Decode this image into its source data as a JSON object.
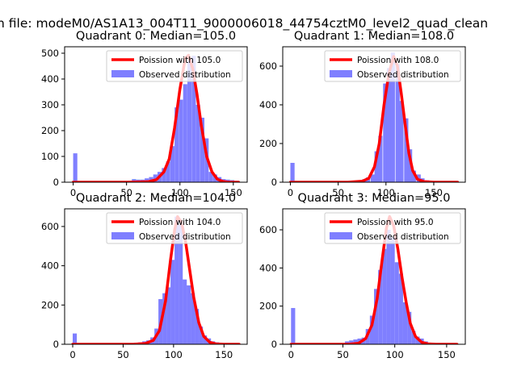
{
  "figure": {
    "suptitle": "n file: modeM0/AS1A13_004T11_9000006018_44754cztM0_level2_quad_clean"
  },
  "colors": {
    "hist": "#7f7fff",
    "poisson_line": "#ff0000",
    "axes_edge": "#000000",
    "background": "#ffffff"
  },
  "chart_data": [
    {
      "type": "bar",
      "title": "Quadrant 0: Median=105.0",
      "xlabel": "",
      "ylabel": "",
      "xlim": [
        -8,
        163
      ],
      "ylim": [
        0,
        525
      ],
      "xticks": [
        0,
        50,
        100,
        150
      ],
      "yticks": [
        0,
        100,
        200,
        300,
        400,
        500
      ],
      "grid": false,
      "legend_position": "upper-right",
      "series": [
        {
          "name": "Poission with 105.0",
          "kind": "line",
          "mean": 105.0,
          "points": [
            [
              0,
              0
            ],
            [
              50,
              0
            ],
            [
              70,
              2
            ],
            [
              78,
              10
            ],
            [
              85,
              40
            ],
            [
              90,
              90
            ],
            [
              95,
              210
            ],
            [
              100,
              360
            ],
            [
              105,
              480
            ],
            [
              108,
              492
            ],
            [
              112,
              440
            ],
            [
              116,
              340
            ],
            [
              120,
              220
            ],
            [
              125,
              100
            ],
            [
              130,
              40
            ],
            [
              135,
              12
            ],
            [
              140,
              3
            ],
            [
              145,
              0
            ],
            [
              155,
              0
            ]
          ]
        },
        {
          "name": "Observed distribution",
          "kind": "histogram",
          "bin_width": 3.9,
          "bins": [
            [
              0,
              112
            ],
            [
              4,
              2
            ],
            [
              8,
              1
            ],
            [
              12,
              1
            ],
            [
              16,
              1
            ],
            [
              20,
              1
            ],
            [
              24,
              1
            ],
            [
              28,
              1
            ],
            [
              32,
              1
            ],
            [
              36,
              1
            ],
            [
              40,
              1
            ],
            [
              44,
              1
            ],
            [
              48,
              1
            ],
            [
              55,
              12
            ],
            [
              59,
              10
            ],
            [
              63,
              10
            ],
            [
              67,
              15
            ],
            [
              71,
              20
            ],
            [
              75,
              30
            ],
            [
              79,
              40
            ],
            [
              83,
              55
            ],
            [
              87,
              80
            ],
            [
              91,
              140
            ],
            [
              95,
              290
            ],
            [
              99,
              320
            ],
            [
              103,
              380
            ],
            [
              107,
              470
            ],
            [
              111,
              490
            ],
            [
              115,
              300
            ],
            [
              119,
              250
            ],
            [
              123,
              170
            ],
            [
              127,
              40
            ],
            [
              131,
              30
            ],
            [
              135,
              20
            ],
            [
              139,
              12
            ],
            [
              143,
              10
            ],
            [
              147,
              8
            ],
            [
              151,
              5
            ]
          ]
        }
      ]
    },
    {
      "type": "bar",
      "title": "Quadrant 1: Median=108.0",
      "xlabel": "",
      "ylabel": "",
      "xlim": [
        -8,
        183
      ],
      "ylim": [
        0,
        700
      ],
      "xticks": [
        0,
        50,
        100,
        150
      ],
      "yticks": [
        0,
        200,
        400,
        600
      ],
      "grid": false,
      "legend_position": "upper-right",
      "series": [
        {
          "name": "Poission with 108.0",
          "kind": "line",
          "mean": 108.0,
          "points": [
            [
              0,
              0
            ],
            [
              60,
              0
            ],
            [
              75,
              5
            ],
            [
              82,
              20
            ],
            [
              88,
              80
            ],
            [
              93,
              200
            ],
            [
              98,
              400
            ],
            [
              103,
              560
            ],
            [
              108,
              650
            ],
            [
              112,
              600
            ],
            [
              116,
              460
            ],
            [
              120,
              300
            ],
            [
              124,
              150
            ],
            [
              128,
              60
            ],
            [
              133,
              15
            ],
            [
              140,
              3
            ],
            [
              150,
              0
            ],
            [
              175,
              0
            ]
          ]
        },
        {
          "name": "Observed distribution",
          "kind": "histogram",
          "bin_width": 4.4,
          "bins": [
            [
              0,
              100
            ],
            [
              4.4,
              2
            ],
            [
              9,
              1
            ],
            [
              13,
              1
            ],
            [
              18,
              1
            ],
            [
              22,
              1
            ],
            [
              26,
              1
            ],
            [
              31,
              1
            ],
            [
              35,
              1
            ],
            [
              40,
              1
            ],
            [
              44,
              1
            ],
            [
              49,
              1
            ],
            [
              53,
              2
            ],
            [
              57,
              3
            ],
            [
              62,
              5
            ],
            [
              66,
              7
            ],
            [
              70,
              10
            ],
            [
              75,
              15
            ],
            [
              79,
              25
            ],
            [
              84,
              40
            ],
            [
              88,
              160
            ],
            [
              92,
              240
            ],
            [
              97,
              510
            ],
            [
              101,
              590
            ],
            [
              105,
              670
            ],
            [
              110,
              610
            ],
            [
              114,
              420
            ],
            [
              119,
              330
            ],
            [
              123,
              170
            ],
            [
              127,
              60
            ],
            [
              132,
              40
            ],
            [
              136,
              20
            ],
            [
              141,
              10
            ],
            [
              145,
              5
            ],
            [
              150,
              3
            ],
            [
              154,
              2
            ],
            [
              158,
              1
            ],
            [
              163,
              1
            ],
            [
              167,
              1
            ],
            [
              172,
              1
            ]
          ]
        }
      ]
    },
    {
      "type": "bar",
      "title": "Quadrant 2: Median=104.0",
      "xlabel": "",
      "ylabel": "",
      "xlim": [
        -8,
        173
      ],
      "ylim": [
        0,
        690
      ],
      "xticks": [
        0,
        50,
        100,
        150
      ],
      "yticks": [
        0,
        200,
        400,
        600
      ],
      "grid": false,
      "legend_position": "upper-right",
      "series": [
        {
          "name": "Poission with 104.0",
          "kind": "line",
          "mean": 104.0,
          "points": [
            [
              0,
              0
            ],
            [
              60,
              0
            ],
            [
              72,
              4
            ],
            [
              80,
              20
            ],
            [
              86,
              70
            ],
            [
              92,
              220
            ],
            [
              97,
              430
            ],
            [
              101,
              580
            ],
            [
              104,
              650
            ],
            [
              108,
              620
            ],
            [
              112,
              520
            ],
            [
              116,
              380
            ],
            [
              120,
              240
            ],
            [
              125,
              110
            ],
            [
              130,
              40
            ],
            [
              136,
              10
            ],
            [
              142,
              2
            ],
            [
              150,
              0
            ],
            [
              165,
              0
            ]
          ]
        },
        {
          "name": "Observed distribution",
          "kind": "histogram",
          "bin_width": 4.1,
          "bins": [
            [
              0,
              55
            ],
            [
              4,
              2
            ],
            [
              8,
              1
            ],
            [
              12,
              1
            ],
            [
              16,
              1
            ],
            [
              20,
              1
            ],
            [
              24,
              1
            ],
            [
              28,
              1
            ],
            [
              32,
              1
            ],
            [
              36,
              1
            ],
            [
              40,
              1
            ],
            [
              44,
              1
            ],
            [
              48,
              1
            ],
            [
              53,
              1
            ],
            [
              57,
              5
            ],
            [
              61,
              8
            ],
            [
              65,
              10
            ],
            [
              69,
              15
            ],
            [
              73,
              20
            ],
            [
              77,
              35
            ],
            [
              81,
              80
            ],
            [
              85,
              230
            ],
            [
              89,
              260
            ],
            [
              93,
              290
            ],
            [
              97,
              430
            ],
            [
              101,
              650
            ],
            [
              105,
              610
            ],
            [
              109,
              330
            ],
            [
              113,
              300
            ],
            [
              117,
              260
            ],
            [
              121,
              180
            ],
            [
              125,
              90
            ],
            [
              129,
              45
            ],
            [
              133,
              30
            ],
            [
              137,
              15
            ],
            [
              141,
              10
            ],
            [
              145,
              5
            ],
            [
              150,
              3
            ],
            [
              154,
              2
            ],
            [
              158,
              1
            ],
            [
              162,
              1
            ]
          ]
        }
      ]
    },
    {
      "type": "bar",
      "title": "Quadrant 3: Median=95.0",
      "xlabel": "",
      "ylabel": "",
      "xlim": [
        -8,
        168
      ],
      "ylim": [
        0,
        710
      ],
      "xticks": [
        0,
        50,
        100,
        150
      ],
      "yticks": [
        0,
        200,
        400,
        600
      ],
      "grid": false,
      "legend_position": "upper-right",
      "series": [
        {
          "name": "Poission with 95.0",
          "kind": "line",
          "mean": 95.0,
          "points": [
            [
              0,
              0
            ],
            [
              55,
              0
            ],
            [
              65,
              5
            ],
            [
              72,
              30
            ],
            [
              78,
              100
            ],
            [
              83,
              240
            ],
            [
              88,
              450
            ],
            [
              92,
              610
            ],
            [
              95,
              670
            ],
            [
              99,
              620
            ],
            [
              103,
              500
            ],
            [
              107,
              350
            ],
            [
              111,
              220
            ],
            [
              115,
              110
            ],
            [
              120,
              40
            ],
            [
              126,
              10
            ],
            [
              132,
              2
            ],
            [
              140,
              0
            ],
            [
              160,
              0
            ]
          ]
        },
        {
          "name": "Observed distribution",
          "kind": "histogram",
          "bin_width": 4.0,
          "bins": [
            [
              0,
              190
            ],
            [
              4,
              2
            ],
            [
              8,
              1
            ],
            [
              12,
              1
            ],
            [
              16,
              1
            ],
            [
              20,
              1
            ],
            [
              24,
              1
            ],
            [
              28,
              1
            ],
            [
              32,
              1
            ],
            [
              36,
              1
            ],
            [
              40,
              1
            ],
            [
              44,
              3
            ],
            [
              48,
              5
            ],
            [
              52,
              15
            ],
            [
              56,
              20
            ],
            [
              60,
              25
            ],
            [
              64,
              30
            ],
            [
              68,
              35
            ],
            [
              72,
              80
            ],
            [
              76,
              150
            ],
            [
              80,
              290
            ],
            [
              84,
              390
            ],
            [
              88,
              500
            ],
            [
              92,
              600
            ],
            [
              96,
              560
            ],
            [
              100,
              430
            ],
            [
              104,
              370
            ],
            [
              108,
              220
            ],
            [
              112,
              170
            ],
            [
              116,
              70
            ],
            [
              120,
              40
            ],
            [
              124,
              30
            ],
            [
              128,
              15
            ],
            [
              132,
              8
            ],
            [
              136,
              5
            ],
            [
              140,
              3
            ],
            [
              144,
              2
            ],
            [
              148,
              1
            ],
            [
              152,
              1
            ],
            [
              156,
              1
            ]
          ]
        }
      ]
    }
  ]
}
